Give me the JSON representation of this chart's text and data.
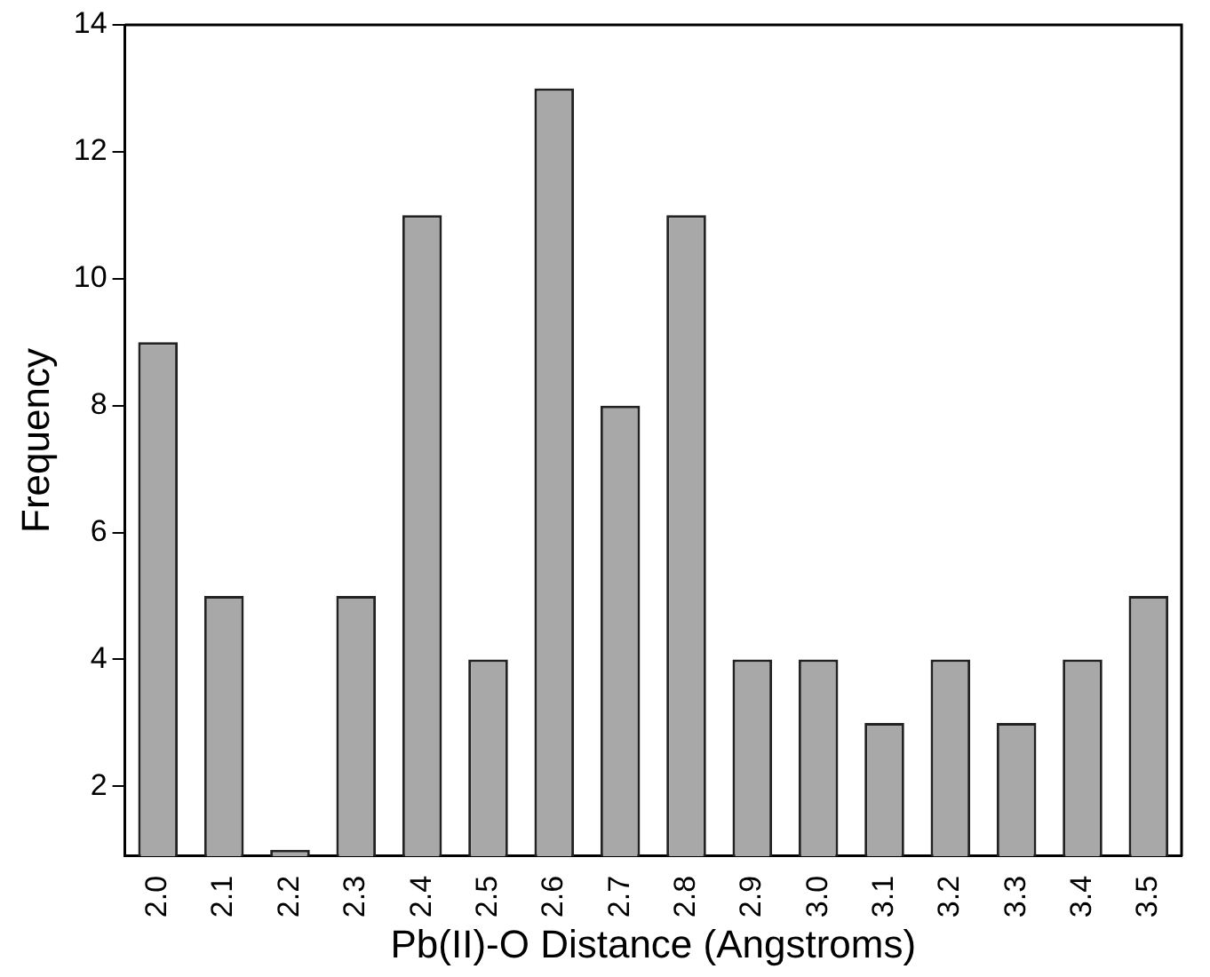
{
  "chart_data": {
    "type": "bar",
    "xlabel": "Pb(II)-O Distance (Angstroms)",
    "ylabel": "Frequency",
    "categories": [
      "2.0",
      "2.1",
      "2.2",
      "2.3",
      "2.4",
      "2.5",
      "2.6",
      "2.7",
      "2.8",
      "2.9",
      "3.0",
      "3.1",
      "3.2",
      "3.3",
      "3.4",
      "3.5"
    ],
    "values": [
      9,
      5,
      1,
      5,
      11,
      4,
      13,
      8,
      11,
      4,
      4,
      3,
      4,
      3,
      4,
      5
    ],
    "color": "#a8a8a8",
    "ylim": [
      0.9,
      14
    ],
    "yticks": [
      2,
      4,
      6,
      8,
      10,
      12,
      14
    ],
    "grid": false,
    "legend": false
  }
}
